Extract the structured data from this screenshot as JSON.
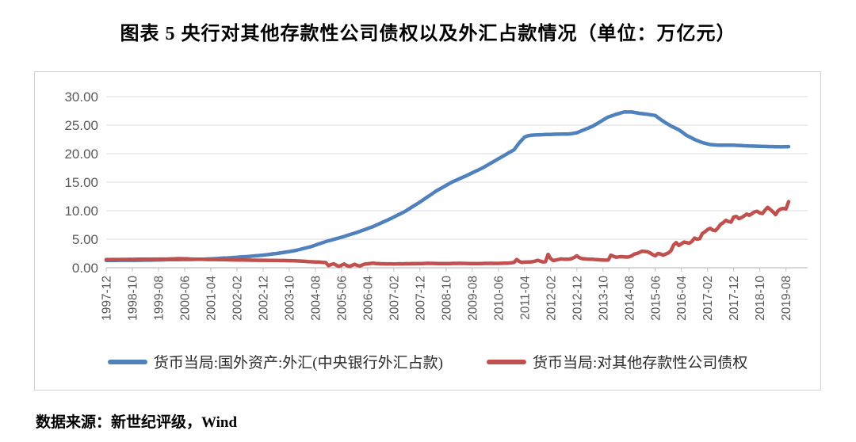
{
  "title": "图表 5  央行对其他存款性公司债权以及外汇占款情况（单位：万亿元）",
  "source": "数据来源：新世纪评级，Wind",
  "colors": {
    "series1_blue": "#4F81BD",
    "series2_red": "#C0504D",
    "gridline": "#D9D9D9",
    "axis_line": "#BFBFBF",
    "tick_text": "#595959",
    "frame_border": "#D0D0D0"
  },
  "chart_data": {
    "type": "line",
    "title": "央行对其他存款性公司债权以及外汇占款情况",
    "unit": "万亿元",
    "x_start": "1997-12",
    "x_end": "2019-09",
    "x_frequency": "monthly",
    "x_tick_labels": [
      "1997-12",
      "1998-10",
      "1999-08",
      "2000-06",
      "2001-04",
      "2002-02",
      "2002-12",
      "2003-10",
      "2004-08",
      "2005-06",
      "2006-04",
      "2007-02",
      "2007-12",
      "2008-10",
      "2009-08",
      "2010-06",
      "2011-04",
      "2012-02",
      "2012-12",
      "2013-10",
      "2014-08",
      "2015-06",
      "2016-04",
      "2017-02",
      "2017-12",
      "2018-10",
      "2019-08"
    ],
    "x_tick_step_months": 10,
    "y_tick_labels": [
      "30.00",
      "25.00",
      "20.00",
      "15.00",
      "10.00",
      "5.00",
      "0.00"
    ],
    "y_tick_values": [
      30,
      25,
      20,
      15,
      10,
      5,
      0
    ],
    "ylim": [
      0,
      32.5
    ],
    "grid": "horizontal-only",
    "legend_position": "bottom",
    "series": [
      {
        "name": "货币当局:国外资产:外汇(中央银行外汇占款)",
        "color": "#4F81BD",
        "values": [
          1.28,
          1.28,
          1.29,
          1.29,
          1.29,
          1.3,
          1.3,
          1.3,
          1.3,
          1.31,
          1.31,
          1.31,
          1.31,
          1.32,
          1.32,
          1.33,
          1.34,
          1.34,
          1.35,
          1.36,
          1.37,
          1.38,
          1.39,
          1.4,
          1.41,
          1.42,
          1.42,
          1.43,
          1.43,
          1.44,
          1.44,
          1.45,
          1.45,
          1.46,
          1.47,
          1.47,
          1.48,
          1.5,
          1.52,
          1.54,
          1.56,
          1.58,
          1.6,
          1.63,
          1.66,
          1.69,
          1.71,
          1.74,
          1.77,
          1.8,
          1.83,
          1.87,
          1.9,
          1.93,
          1.96,
          2.0,
          2.04,
          2.09,
          2.13,
          2.17,
          2.21,
          2.27,
          2.32,
          2.38,
          2.44,
          2.49,
          2.55,
          2.62,
          2.69,
          2.77,
          2.84,
          2.91,
          2.98,
          3.09,
          3.2,
          3.32,
          3.43,
          3.54,
          3.65,
          3.81,
          3.96,
          4.12,
          4.28,
          4.43,
          4.59,
          4.72,
          4.84,
          4.97,
          5.1,
          5.22,
          5.35,
          5.49,
          5.64,
          5.78,
          5.92,
          6.07,
          6.21,
          6.38,
          6.54,
          6.71,
          6.87,
          7.04,
          7.2,
          7.41,
          7.61,
          7.82,
          8.03,
          8.23,
          8.44,
          8.67,
          8.89,
          9.12,
          9.35,
          9.57,
          9.8,
          10.09,
          10.37,
          10.66,
          10.95,
          11.23,
          11.52,
          11.83,
          12.15,
          12.46,
          12.77,
          13.09,
          13.4,
          13.66,
          13.92,
          14.18,
          14.44,
          14.7,
          14.96,
          15.17,
          15.37,
          15.58,
          15.79,
          15.99,
          16.2,
          16.42,
          16.64,
          16.86,
          17.07,
          17.29,
          17.51,
          17.78,
          18.04,
          18.31,
          18.57,
          18.84,
          19.1,
          19.36,
          19.63,
          19.89,
          20.16,
          20.42,
          20.68,
          21.3,
          21.9,
          22.4,
          22.9,
          23.1,
          23.2,
          23.25,
          23.28,
          23.3,
          23.32,
          23.34,
          23.36,
          23.37,
          23.38,
          23.4,
          23.41,
          23.42,
          23.43,
          23.44,
          23.45,
          23.46,
          23.52,
          23.6,
          23.67,
          23.86,
          24.05,
          24.24,
          24.42,
          24.61,
          24.8,
          25.07,
          25.34,
          25.62,
          25.89,
          26.16,
          26.43,
          26.59,
          26.74,
          26.9,
          27.03,
          27.17,
          27.3,
          27.3,
          27.3,
          27.3,
          27.22,
          27.15,
          27.07,
          27.01,
          26.96,
          26.9,
          26.83,
          26.77,
          26.7,
          26.35,
          26.0,
          25.7,
          25.4,
          25.13,
          24.85,
          24.63,
          24.42,
          24.2,
          23.87,
          23.53,
          23.2,
          22.97,
          22.73,
          22.5,
          22.31,
          22.13,
          21.94,
          21.83,
          21.71,
          21.6,
          21.57,
          21.53,
          21.5,
          21.5,
          21.49,
          21.49,
          21.48,
          21.48,
          21.48,
          21.46,
          21.44,
          21.42,
          21.39,
          21.37,
          21.35,
          21.34,
          21.32,
          21.31,
          21.29,
          21.28,
          21.26,
          21.25,
          21.24,
          21.23,
          21.22,
          21.21,
          21.2,
          21.21,
          21.22,
          21.23
        ]
      },
      {
        "name": "货币当局:对其他存款性公司债权",
        "color": "#C0504D",
        "values": [
          1.44,
          1.43,
          1.44,
          1.45,
          1.44,
          1.45,
          1.46,
          1.45,
          1.46,
          1.47,
          1.46,
          1.47,
          1.48,
          1.48,
          1.49,
          1.5,
          1.49,
          1.5,
          1.51,
          1.5,
          1.51,
          1.52,
          1.51,
          1.52,
          1.53,
          1.54,
          1.56,
          1.58,
          1.6,
          1.59,
          1.57,
          1.55,
          1.53,
          1.51,
          1.5,
          1.49,
          1.48,
          1.47,
          1.46,
          1.45,
          1.45,
          1.44,
          1.44,
          1.43,
          1.42,
          1.41,
          1.4,
          1.39,
          1.38,
          1.37,
          1.36,
          1.36,
          1.35,
          1.35,
          1.34,
          1.33,
          1.32,
          1.32,
          1.31,
          1.31,
          1.3,
          1.3,
          1.29,
          1.29,
          1.28,
          1.28,
          1.27,
          1.27,
          1.26,
          1.25,
          1.24,
          1.23,
          1.22,
          1.2,
          1.18,
          1.15,
          1.12,
          1.09,
          1.06,
          1.04,
          1.02,
          1.0,
          0.97,
          0.94,
          0.9,
          0.38,
          0.55,
          0.7,
          0.45,
          0.24,
          0.45,
          0.65,
          0.4,
          0.22,
          0.42,
          0.6,
          0.42,
          0.3,
          0.5,
          0.65,
          0.7,
          0.75,
          0.8,
          0.75,
          0.72,
          0.7,
          0.69,
          0.68,
          0.68,
          0.68,
          0.67,
          0.68,
          0.69,
          0.68,
          0.7,
          0.71,
          0.7,
          0.72,
          0.71,
          0.72,
          0.73,
          0.74,
          0.76,
          0.78,
          0.77,
          0.76,
          0.75,
          0.74,
          0.73,
          0.72,
          0.73,
          0.74,
          0.75,
          0.76,
          0.77,
          0.78,
          0.77,
          0.76,
          0.75,
          0.74,
          0.73,
          0.72,
          0.73,
          0.74,
          0.75,
          0.76,
          0.77,
          0.78,
          0.77,
          0.76,
          0.77,
          0.78,
          0.79,
          0.8,
          0.82,
          0.86,
          0.95,
          1.45,
          1.1,
          0.95,
          0.98,
          1.0,
          1.02,
          1.05,
          1.15,
          1.3,
          1.15,
          1.02,
          1.05,
          2.35,
          1.6,
          1.25,
          1.35,
          1.45,
          1.55,
          1.5,
          1.48,
          1.5,
          1.6,
          1.8,
          2.1,
          1.75,
          1.6,
          1.55,
          1.52,
          1.5,
          1.48,
          1.45,
          1.42,
          1.38,
          1.35,
          1.33,
          1.35,
          2.2,
          2.0,
          1.85,
          1.9,
          1.95,
          1.9,
          1.88,
          1.92,
          2.1,
          2.4,
          2.5,
          2.7,
          2.9,
          2.85,
          2.8,
          2.6,
          2.3,
          2.1,
          2.5,
          2.4,
          2.2,
          2.4,
          2.6,
          3.0,
          4.0,
          4.4,
          3.9,
          4.2,
          4.5,
          4.4,
          4.3,
          4.6,
          5.2,
          5.0,
          5.1,
          6.0,
          6.3,
          6.7,
          6.9,
          6.6,
          6.5,
          7.0,
          7.6,
          7.9,
          8.3,
          8.1,
          8.0,
          8.9,
          9.0,
          8.6,
          8.8,
          9.1,
          9.4,
          9.2,
          9.5,
          9.8,
          9.9,
          9.6,
          9.5,
          10.1,
          10.6,
          10.2,
          9.8,
          9.3,
          10.0,
          10.3,
          10.4,
          10.3,
          11.6
        ]
      }
    ]
  }
}
